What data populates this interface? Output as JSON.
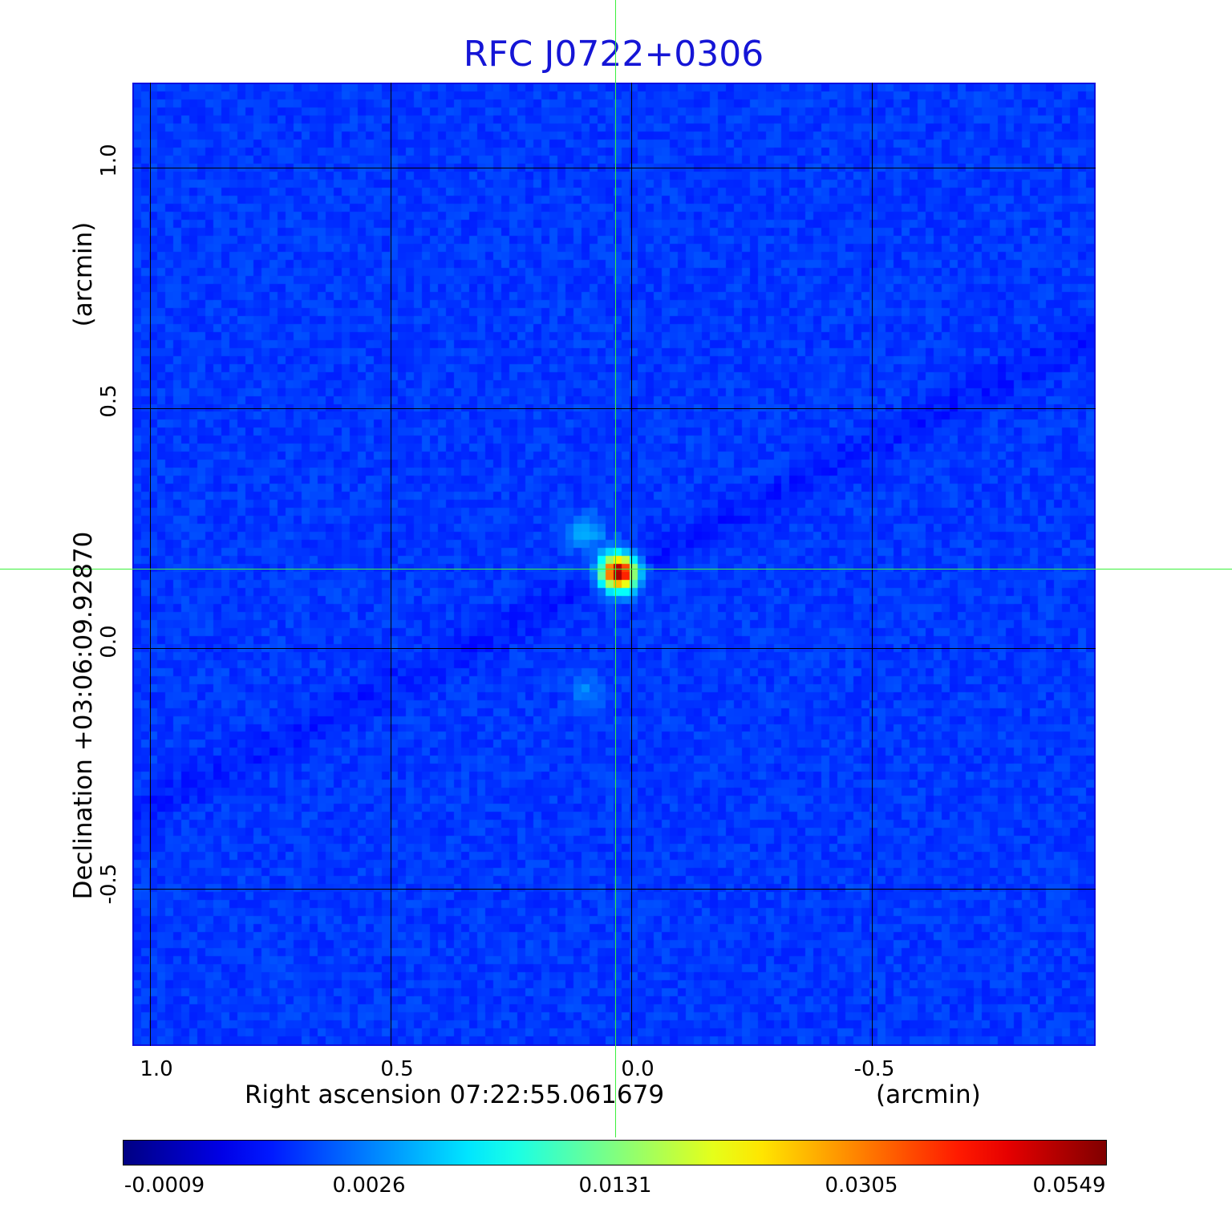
{
  "title": "RFC J0722+0306",
  "x_axis": {
    "label": "Right ascension  07:22:55.061679",
    "unit": "(arcmin)",
    "ticks": [
      "1.0",
      "0.5",
      "0.0",
      "-0.5"
    ]
  },
  "y_axis": {
    "label": "Declination  +03:06:09.92870",
    "unit": "(arcmin)",
    "ticks": [
      "1.0",
      "0.5",
      "0.0",
      "-0.5"
    ]
  },
  "colorbar": {
    "colormap": "jet",
    "ticks": [
      "-0.0009",
      "0.0026",
      "0.0131",
      "0.0305",
      "0.0549"
    ]
  },
  "colors": {
    "title": "#1515d6",
    "crosshair": "#3cf03c",
    "grid": "#000000",
    "frame": "#1010e0"
  },
  "image": {
    "description_icon": "radio-source-map",
    "peak_value": 0.0549
  }
}
